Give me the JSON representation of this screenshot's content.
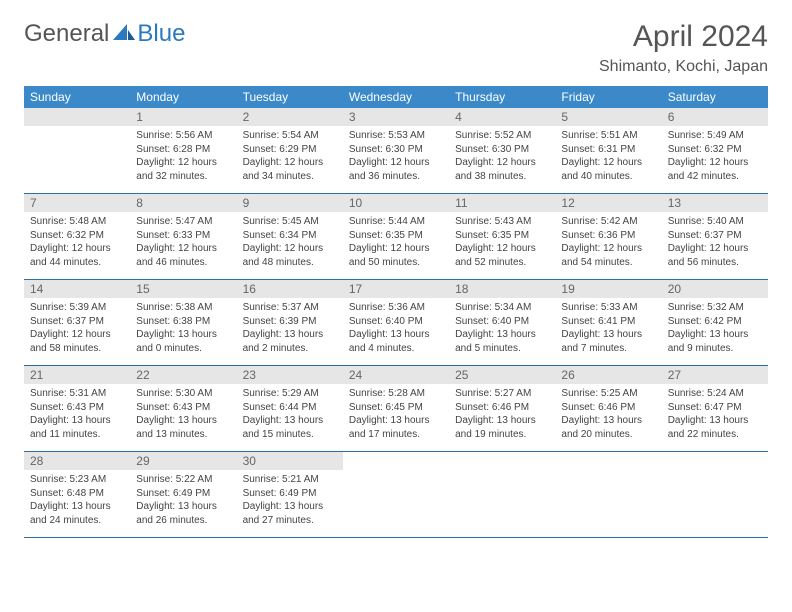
{
  "logo": {
    "general": "General",
    "blue": "Blue"
  },
  "title": "April 2024",
  "location": "Shimanto, Kochi, Japan",
  "colors": {
    "header_bg": "#3b89c9",
    "header_text": "#ffffff",
    "daynum_bg": "#e6e6e6",
    "daynum_text": "#666666",
    "cell_border": "#2b6fa8",
    "body_text": "#444444",
    "title_text": "#555555",
    "logo_blue": "#2b7abf"
  },
  "fonts": {
    "title_pt": 30,
    "location_pt": 16,
    "header_pt": 12,
    "daynum_pt": 12,
    "body_pt": 10
  },
  "weekdays": [
    "Sunday",
    "Monday",
    "Tuesday",
    "Wednesday",
    "Thursday",
    "Friday",
    "Saturday"
  ],
  "weeks": [
    [
      null,
      {
        "n": "1",
        "sr": "Sunrise: 5:56 AM",
        "ss": "Sunset: 6:28 PM",
        "dl": "Daylight: 12 hours and 32 minutes."
      },
      {
        "n": "2",
        "sr": "Sunrise: 5:54 AM",
        "ss": "Sunset: 6:29 PM",
        "dl": "Daylight: 12 hours and 34 minutes."
      },
      {
        "n": "3",
        "sr": "Sunrise: 5:53 AM",
        "ss": "Sunset: 6:30 PM",
        "dl": "Daylight: 12 hours and 36 minutes."
      },
      {
        "n": "4",
        "sr": "Sunrise: 5:52 AM",
        "ss": "Sunset: 6:30 PM",
        "dl": "Daylight: 12 hours and 38 minutes."
      },
      {
        "n": "5",
        "sr": "Sunrise: 5:51 AM",
        "ss": "Sunset: 6:31 PM",
        "dl": "Daylight: 12 hours and 40 minutes."
      },
      {
        "n": "6",
        "sr": "Sunrise: 5:49 AM",
        "ss": "Sunset: 6:32 PM",
        "dl": "Daylight: 12 hours and 42 minutes."
      }
    ],
    [
      {
        "n": "7",
        "sr": "Sunrise: 5:48 AM",
        "ss": "Sunset: 6:32 PM",
        "dl": "Daylight: 12 hours and 44 minutes."
      },
      {
        "n": "8",
        "sr": "Sunrise: 5:47 AM",
        "ss": "Sunset: 6:33 PM",
        "dl": "Daylight: 12 hours and 46 minutes."
      },
      {
        "n": "9",
        "sr": "Sunrise: 5:45 AM",
        "ss": "Sunset: 6:34 PM",
        "dl": "Daylight: 12 hours and 48 minutes."
      },
      {
        "n": "10",
        "sr": "Sunrise: 5:44 AM",
        "ss": "Sunset: 6:35 PM",
        "dl": "Daylight: 12 hours and 50 minutes."
      },
      {
        "n": "11",
        "sr": "Sunrise: 5:43 AM",
        "ss": "Sunset: 6:35 PM",
        "dl": "Daylight: 12 hours and 52 minutes."
      },
      {
        "n": "12",
        "sr": "Sunrise: 5:42 AM",
        "ss": "Sunset: 6:36 PM",
        "dl": "Daylight: 12 hours and 54 minutes."
      },
      {
        "n": "13",
        "sr": "Sunrise: 5:40 AM",
        "ss": "Sunset: 6:37 PM",
        "dl": "Daylight: 12 hours and 56 minutes."
      }
    ],
    [
      {
        "n": "14",
        "sr": "Sunrise: 5:39 AM",
        "ss": "Sunset: 6:37 PM",
        "dl": "Daylight: 12 hours and 58 minutes."
      },
      {
        "n": "15",
        "sr": "Sunrise: 5:38 AM",
        "ss": "Sunset: 6:38 PM",
        "dl": "Daylight: 13 hours and 0 minutes."
      },
      {
        "n": "16",
        "sr": "Sunrise: 5:37 AM",
        "ss": "Sunset: 6:39 PM",
        "dl": "Daylight: 13 hours and 2 minutes."
      },
      {
        "n": "17",
        "sr": "Sunrise: 5:36 AM",
        "ss": "Sunset: 6:40 PM",
        "dl": "Daylight: 13 hours and 4 minutes."
      },
      {
        "n": "18",
        "sr": "Sunrise: 5:34 AM",
        "ss": "Sunset: 6:40 PM",
        "dl": "Daylight: 13 hours and 5 minutes."
      },
      {
        "n": "19",
        "sr": "Sunrise: 5:33 AM",
        "ss": "Sunset: 6:41 PM",
        "dl": "Daylight: 13 hours and 7 minutes."
      },
      {
        "n": "20",
        "sr": "Sunrise: 5:32 AM",
        "ss": "Sunset: 6:42 PM",
        "dl": "Daylight: 13 hours and 9 minutes."
      }
    ],
    [
      {
        "n": "21",
        "sr": "Sunrise: 5:31 AM",
        "ss": "Sunset: 6:43 PM",
        "dl": "Daylight: 13 hours and 11 minutes."
      },
      {
        "n": "22",
        "sr": "Sunrise: 5:30 AM",
        "ss": "Sunset: 6:43 PM",
        "dl": "Daylight: 13 hours and 13 minutes."
      },
      {
        "n": "23",
        "sr": "Sunrise: 5:29 AM",
        "ss": "Sunset: 6:44 PM",
        "dl": "Daylight: 13 hours and 15 minutes."
      },
      {
        "n": "24",
        "sr": "Sunrise: 5:28 AM",
        "ss": "Sunset: 6:45 PM",
        "dl": "Daylight: 13 hours and 17 minutes."
      },
      {
        "n": "25",
        "sr": "Sunrise: 5:27 AM",
        "ss": "Sunset: 6:46 PM",
        "dl": "Daylight: 13 hours and 19 minutes."
      },
      {
        "n": "26",
        "sr": "Sunrise: 5:25 AM",
        "ss": "Sunset: 6:46 PM",
        "dl": "Daylight: 13 hours and 20 minutes."
      },
      {
        "n": "27",
        "sr": "Sunrise: 5:24 AM",
        "ss": "Sunset: 6:47 PM",
        "dl": "Daylight: 13 hours and 22 minutes."
      }
    ],
    [
      {
        "n": "28",
        "sr": "Sunrise: 5:23 AM",
        "ss": "Sunset: 6:48 PM",
        "dl": "Daylight: 13 hours and 24 minutes."
      },
      {
        "n": "29",
        "sr": "Sunrise: 5:22 AM",
        "ss": "Sunset: 6:49 PM",
        "dl": "Daylight: 13 hours and 26 minutes."
      },
      {
        "n": "30",
        "sr": "Sunrise: 5:21 AM",
        "ss": "Sunset: 6:49 PM",
        "dl": "Daylight: 13 hours and 27 minutes."
      },
      null,
      null,
      null,
      null
    ]
  ]
}
